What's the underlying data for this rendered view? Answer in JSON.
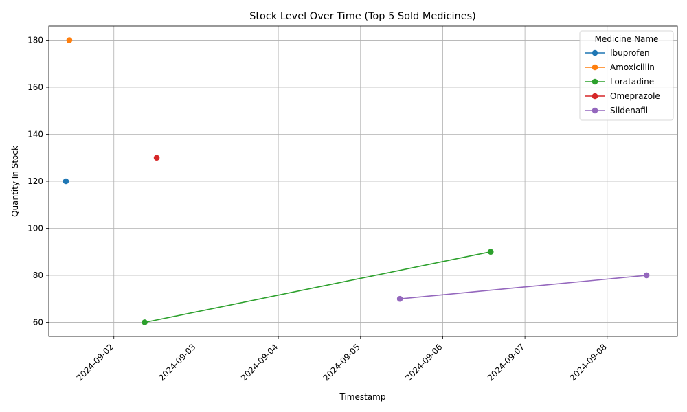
{
  "chart_data": {
    "type": "line",
    "title": "Stock Level Over Time (Top 5 Sold Medicines)",
    "xlabel": "Timestamp",
    "ylabel": "Quantity In Stock",
    "grid": true,
    "legend_title": "Medicine Name",
    "legend_position": "top-right",
    "xlim": [
      "2024-09-01T05:00",
      "2024-09-08T20:30"
    ],
    "ylim": [
      54,
      186
    ],
    "x_ticks": [
      "2024-09-02",
      "2024-09-03",
      "2024-09-04",
      "2024-09-05",
      "2024-09-06",
      "2024-09-07",
      "2024-09-08"
    ],
    "y_ticks": [
      60,
      80,
      100,
      120,
      140,
      160,
      180
    ],
    "series": [
      {
        "name": "Ibuprofen",
        "color": "#1f77b4",
        "points": [
          {
            "x": "2024-09-01T10:00",
            "y": 120
          }
        ]
      },
      {
        "name": "Amoxicillin",
        "color": "#ff7f0e",
        "points": [
          {
            "x": "2024-09-01T11:00",
            "y": 180
          }
        ]
      },
      {
        "name": "Loratadine",
        "color": "#2ca02c",
        "points": [
          {
            "x": "2024-09-02T09:00",
            "y": 60
          },
          {
            "x": "2024-09-06T14:00",
            "y": 90
          }
        ]
      },
      {
        "name": "Omeprazole",
        "color": "#d62728",
        "points": [
          {
            "x": "2024-09-02T12:30",
            "y": 130
          }
        ]
      },
      {
        "name": "Sildenafil",
        "color": "#9467bd",
        "points": [
          {
            "x": "2024-09-05T11:30",
            "y": 70
          },
          {
            "x": "2024-09-08T11:30",
            "y": 80
          }
        ]
      }
    ]
  }
}
